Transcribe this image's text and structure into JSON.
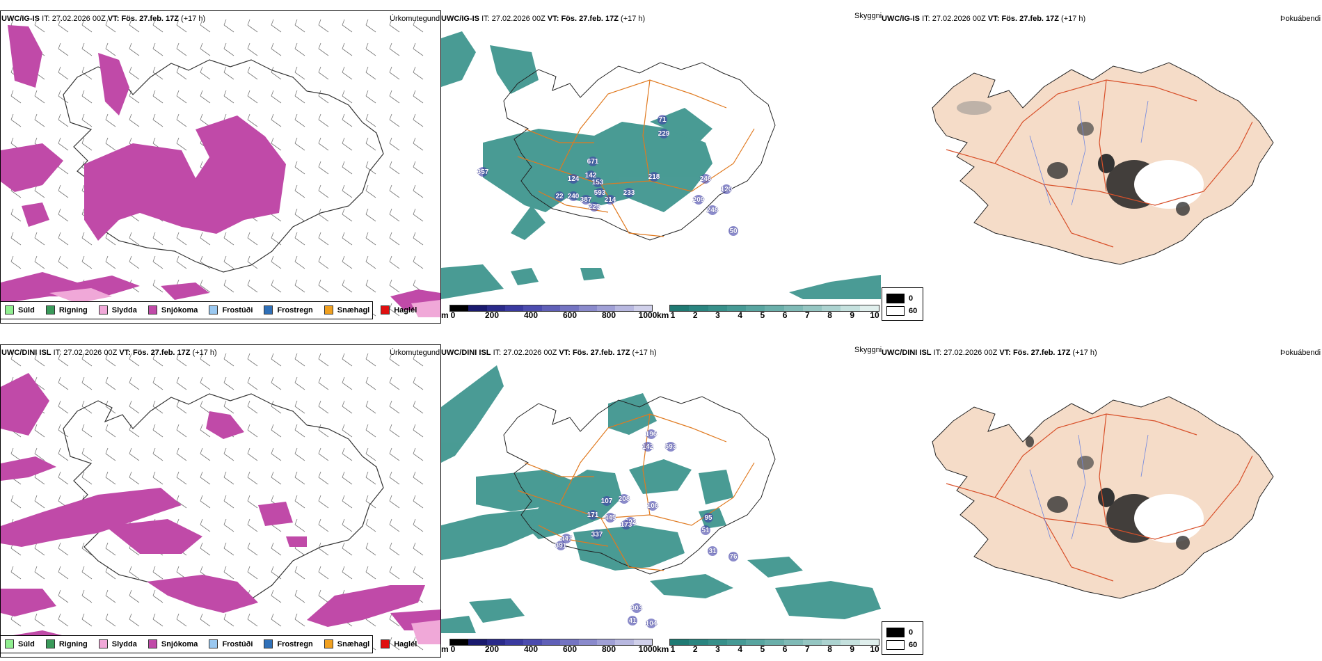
{
  "rows": [
    {
      "model": "UWC/IG-IS",
      "it_label": "IT:",
      "it_value": "27.02.2026 00Z",
      "vt_label": "VT:",
      "vt_value": "Fös. 27.feb. 17Z",
      "lead": "(+17 h)",
      "precip_value_labels": [
        "357",
        "671",
        "142",
        "124",
        "153",
        "218",
        "248",
        "120",
        "229",
        "71",
        "22",
        "240",
        "387",
        "593",
        "225",
        "214",
        "233",
        "209",
        "248",
        "50"
      ]
    },
    {
      "model": "UWC/DINI ISL",
      "it_label": "IT:",
      "it_value": "27.02.2026 00Z",
      "vt_label": "VT:",
      "vt_value": "Fös. 27.feb. 17Z",
      "lead": "(+17 h)",
      "precip_value_labels": [
        "196",
        "142",
        "593",
        "108",
        "208",
        "107",
        "171",
        "445",
        "202",
        "173",
        "337",
        "95",
        "51",
        "391",
        "447",
        "31",
        "76",
        "303",
        "41",
        "104"
      ]
    }
  ],
  "panel_titles": {
    "precip": "Úrkomutegund",
    "visibility": "Skyggni",
    "fog": "Þokuábendi"
  },
  "precip_legend": [
    {
      "label": "Súld",
      "color": "#90ee90"
    },
    {
      "label": "Rigning",
      "color": "#3a9a5a"
    },
    {
      "label": "Slydda",
      "color": "#f0a8d8"
    },
    {
      "label": "Snjókoma",
      "color": "#c04aa8"
    },
    {
      "label": "Frostúði",
      "color": "#9ac8f0"
    },
    {
      "label": "Frostregn",
      "color": "#3070b8"
    },
    {
      "label": "Snæhagl",
      "color": "#f0a020"
    },
    {
      "label": "Haglél",
      "color": "#e01010"
    }
  ],
  "height_colorbar": {
    "unit": "m",
    "ticks": [
      "0",
      "200",
      "400",
      "600",
      "800",
      "1000"
    ],
    "colors": [
      "#000000",
      "#1a1a6e",
      "#2a2a8a",
      "#3a3aa0",
      "#4c4caf",
      "#6060b8",
      "#7474c2",
      "#8a8acc",
      "#a0a0d6",
      "#b8b8e0",
      "#d0d0ea"
    ]
  },
  "visibility_colorbar": {
    "unit": "km",
    "ticks": [
      "1",
      "2",
      "3",
      "4",
      "5",
      "6",
      "7",
      "8",
      "9",
      "10"
    ],
    "colors": [
      "#1f7a73",
      "#2a8580",
      "#37908a",
      "#469a95",
      "#58a5a0",
      "#6aafaa",
      "#7fbab6",
      "#95c6c2",
      "#acd3d0",
      "#c5e1de",
      "#e0efed"
    ]
  },
  "fog_legend": [
    {
      "label": "0",
      "color": "#000000"
    },
    {
      "label": "60",
      "color": "#ffffff"
    }
  ],
  "colors": {
    "snow": "#c04aa8",
    "sleet": "#f0a8d8",
    "vis_teal": "#2a8a82",
    "road_orange": "#e07a20",
    "land_beige": "#f5dcc8",
    "road_red": "#d8502a",
    "river_blue": "#6f86e0"
  }
}
